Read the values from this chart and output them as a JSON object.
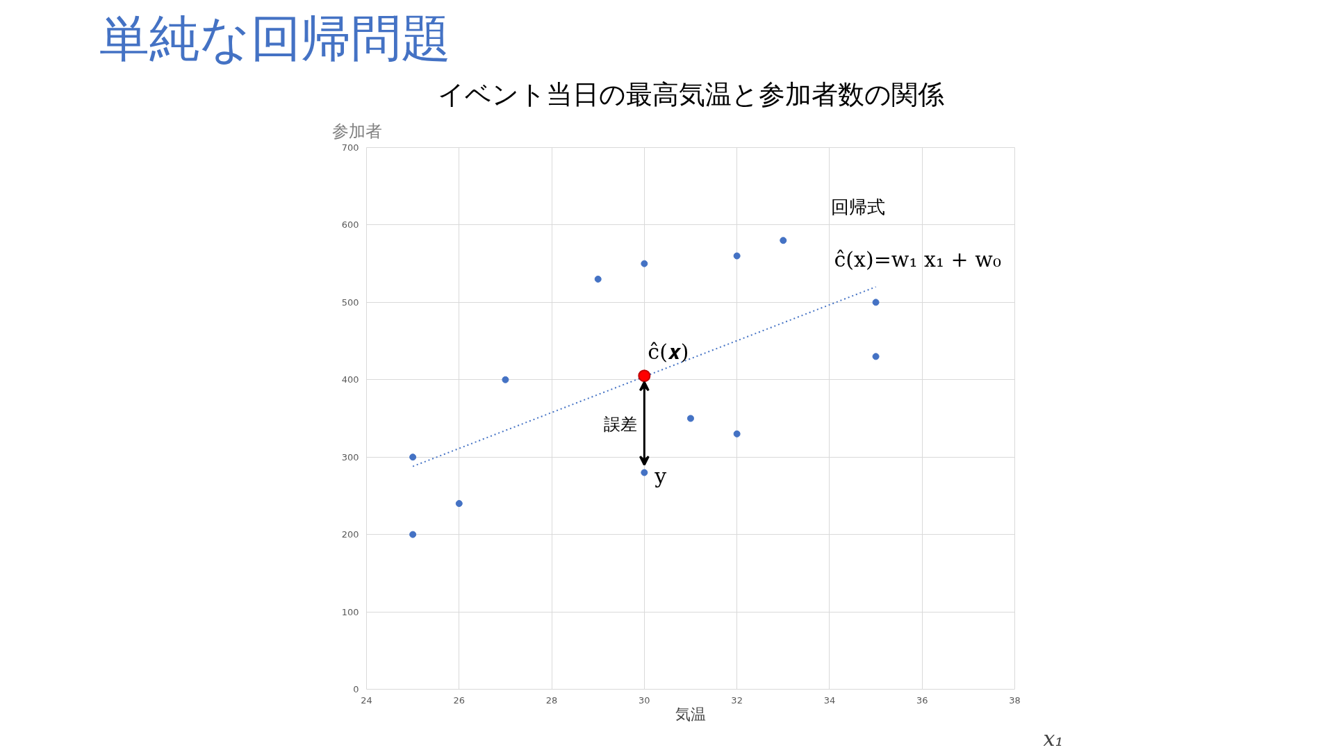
{
  "chart_data": {
    "type": "scatter",
    "title": "単純な回帰問題",
    "subtitle": "イベント当日の最高気温と参加者数の関係",
    "xlabel": "気温",
    "ylabel": "参加者",
    "xlim": [
      24,
      38
    ],
    "xticks": [
      24,
      26,
      28,
      30,
      32,
      34,
      36,
      38
    ],
    "ylim": [
      0,
      700
    ],
    "yticks": [
      0,
      100,
      200,
      300,
      400,
      500,
      600,
      700
    ],
    "grid": true,
    "marker": "circle",
    "series": [
      {
        "color": "#4472c4",
        "x": [
          25,
          25,
          26,
          27,
          29,
          30,
          30,
          31,
          32,
          32,
          33,
          35,
          35
        ],
        "values": [
          300,
          200,
          240,
          400,
          530,
          550,
          280,
          350,
          560,
          330,
          580,
          500,
          430
        ]
      },
      {
        "type": "line",
        "marker": "none",
        "line_style": "dotted",
        "color": "#4472c4",
        "x": [
          25,
          35
        ],
        "values": [
          288,
          520
        ]
      },
      {
        "color": "#ff0000",
        "x": [
          30
        ],
        "values": [
          405
        ]
      }
    ],
    "annotations": [
      "回帰式",
      "ĉ(x)=w₁ x₁ + w₀",
      "ĉ(𝒙)",
      "y",
      "誤差",
      "x₁"
    ]
  }
}
